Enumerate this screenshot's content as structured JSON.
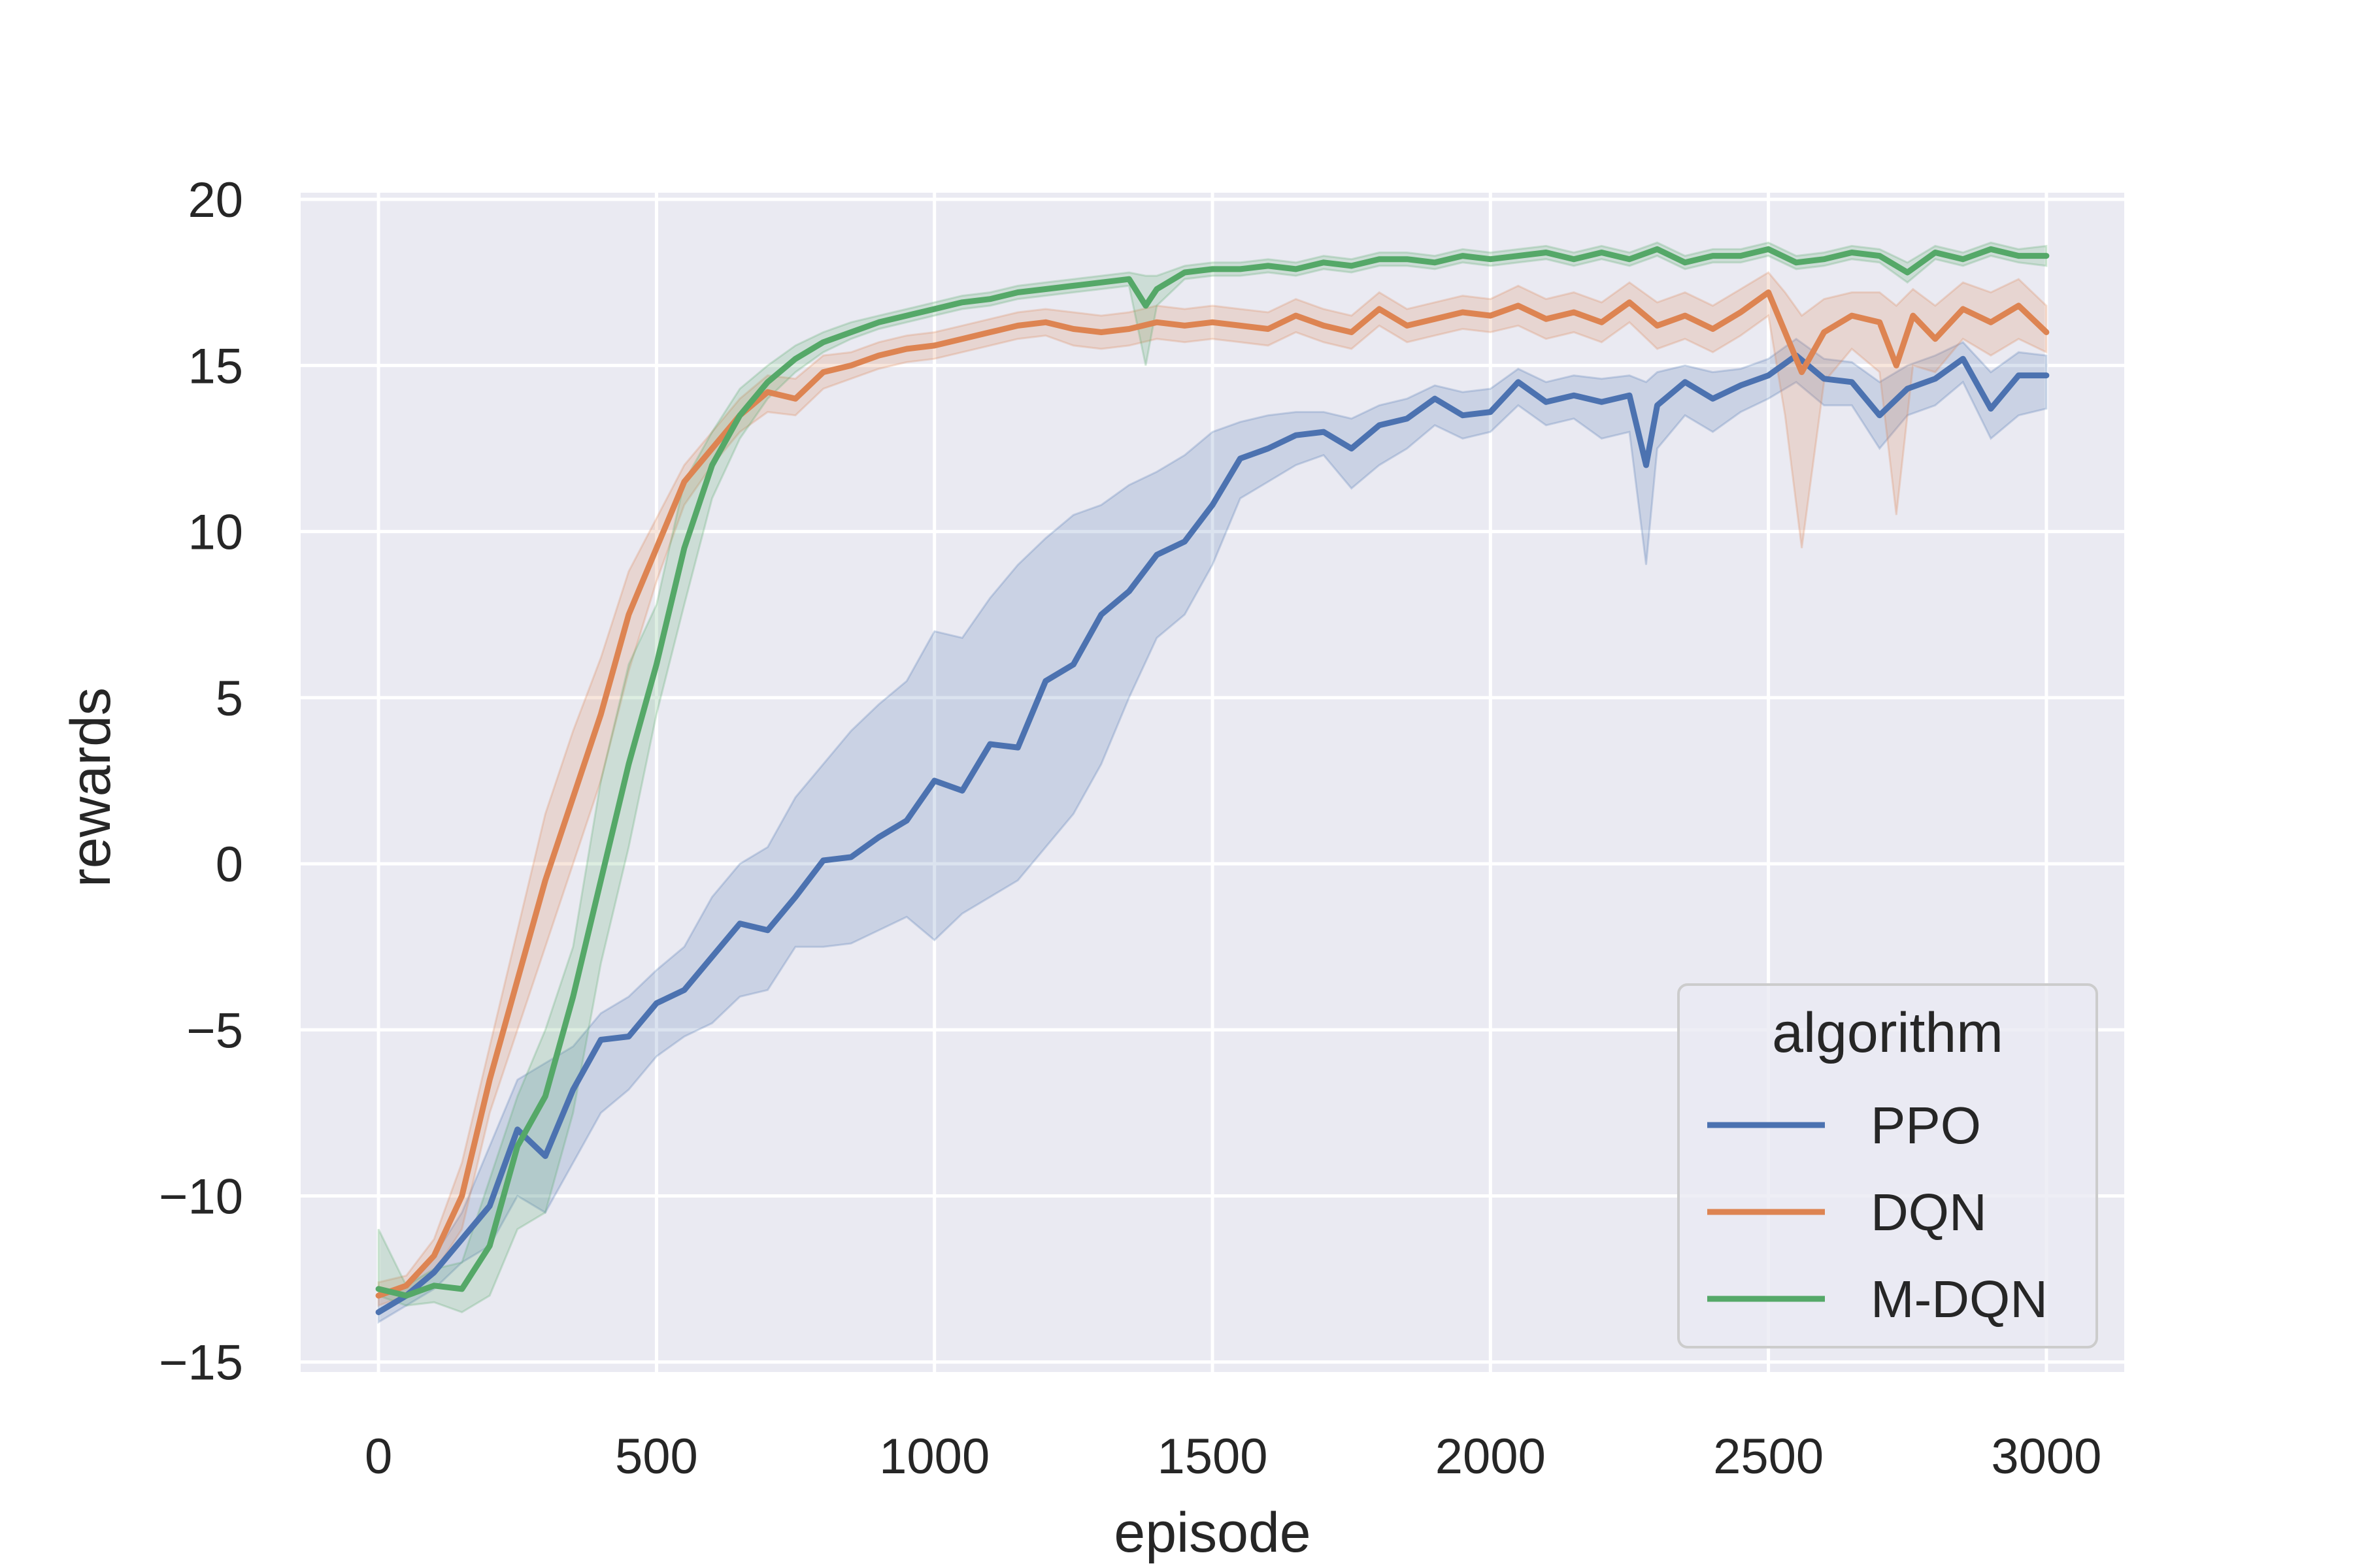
{
  "chart_data": {
    "type": "line",
    "title": "",
    "xlabel": "episode",
    "ylabel": "rewards",
    "xlim": [
      -140,
      3140
    ],
    "ylim": [
      -15.3,
      20.2
    ],
    "xticks": [
      0,
      500,
      1000,
      1500,
      2000,
      2500,
      3000
    ],
    "yticks": [
      -15,
      -10,
      -5,
      0,
      5,
      10,
      15,
      20
    ],
    "xtick_labels": [
      "0",
      "500",
      "1000",
      "1500",
      "2000",
      "2500",
      "3000"
    ],
    "ytick_labels": [
      "−15",
      "−10",
      "−5",
      "0",
      "5",
      "10",
      "15",
      "20"
    ],
    "grid": true,
    "legend_title": "algorithm",
    "legend_position": "lower-right",
    "background": "#eaeaf2",
    "series": [
      {
        "name": "PPO",
        "color": "#4c72b0",
        "x": [
          0,
          50,
          100,
          150,
          200,
          250,
          300,
          350,
          400,
          450,
          500,
          550,
          600,
          650,
          700,
          750,
          800,
          850,
          900,
          950,
          1000,
          1050,
          1100,
          1150,
          1200,
          1250,
          1300,
          1350,
          1400,
          1450,
          1500,
          1550,
          1600,
          1650,
          1700,
          1750,
          1800,
          1850,
          1900,
          1950,
          2000,
          2050,
          2100,
          2150,
          2200,
          2250,
          2280,
          2300,
          2350,
          2400,
          2450,
          2500,
          2550,
          2600,
          2650,
          2700,
          2750,
          2800,
          2850,
          2900,
          2950,
          3000
        ],
        "y": [
          -13.5,
          -13.0,
          -12.3,
          -11.3,
          -10.3,
          -8.0,
          -8.8,
          -6.8,
          -5.3,
          -5.2,
          -4.2,
          -3.8,
          -2.8,
          -1.8,
          -2.0,
          -1.0,
          0.1,
          0.2,
          0.8,
          1.3,
          2.5,
          2.2,
          3.6,
          3.5,
          5.5,
          6.0,
          7.5,
          8.2,
          9.3,
          9.7,
          10.8,
          12.2,
          12.5,
          12.9,
          13.0,
          12.5,
          13.2,
          13.4,
          14.0,
          13.5,
          13.6,
          14.5,
          13.9,
          14.1,
          13.9,
          14.1,
          12.0,
          13.8,
          14.5,
          14.0,
          14.4,
          14.7,
          15.3,
          14.6,
          14.5,
          13.5,
          14.3,
          14.6,
          15.2,
          13.7,
          14.7,
          14.7
        ],
        "lo": [
          -13.8,
          -13.3,
          -12.8,
          -12.0,
          -11.5,
          -10.0,
          -10.5,
          -9.0,
          -7.5,
          -6.8,
          -5.8,
          -5.2,
          -4.8,
          -4.0,
          -3.8,
          -2.5,
          -2.5,
          -2.4,
          -2.0,
          -1.6,
          -2.3,
          -1.5,
          -1.0,
          -0.5,
          0.5,
          1.5,
          3.0,
          5.0,
          6.8,
          7.5,
          9.0,
          11.0,
          11.5,
          12.0,
          12.3,
          11.3,
          12.0,
          12.5,
          13.2,
          12.8,
          13.0,
          13.8,
          13.2,
          13.4,
          12.8,
          13.0,
          9.0,
          12.5,
          13.5,
          13.0,
          13.6,
          14.0,
          14.5,
          13.8,
          13.8,
          12.5,
          13.5,
          13.8,
          14.5,
          12.8,
          13.5,
          13.7
        ],
        "hi": [
          -13.0,
          -12.7,
          -11.8,
          -10.5,
          -8.5,
          -6.5,
          -6.0,
          -5.5,
          -4.5,
          -4.0,
          -3.2,
          -2.5,
          -1.0,
          0.0,
          0.5,
          2.0,
          3.0,
          4.0,
          4.8,
          5.5,
          7.0,
          6.8,
          8.0,
          9.0,
          9.8,
          10.5,
          10.8,
          11.4,
          11.8,
          12.3,
          13.0,
          13.3,
          13.5,
          13.6,
          13.6,
          13.4,
          13.8,
          14.0,
          14.4,
          14.2,
          14.3,
          14.9,
          14.5,
          14.7,
          14.6,
          14.7,
          14.5,
          14.8,
          15.0,
          14.8,
          14.9,
          15.2,
          15.8,
          15.2,
          15.1,
          14.5,
          15.0,
          15.3,
          15.7,
          14.8,
          15.4,
          15.3
        ]
      },
      {
        "name": "DQN",
        "color": "#dd8452",
        "x": [
          0,
          50,
          100,
          150,
          200,
          250,
          300,
          350,
          400,
          450,
          500,
          550,
          600,
          650,
          700,
          750,
          800,
          850,
          900,
          950,
          1000,
          1050,
          1100,
          1150,
          1200,
          1250,
          1300,
          1350,
          1400,
          1450,
          1500,
          1550,
          1600,
          1650,
          1700,
          1750,
          1800,
          1850,
          1900,
          1950,
          2000,
          2050,
          2100,
          2150,
          2200,
          2250,
          2300,
          2350,
          2400,
          2450,
          2500,
          2530,
          2560,
          2600,
          2650,
          2700,
          2730,
          2760,
          2800,
          2850,
          2900,
          2950,
          3000
        ],
        "y": [
          -13.0,
          -12.7,
          -11.8,
          -10.0,
          -6.5,
          -3.5,
          -0.5,
          2.0,
          4.5,
          7.5,
          9.5,
          11.5,
          12.5,
          13.5,
          14.2,
          14.0,
          14.8,
          15.0,
          15.3,
          15.5,
          15.6,
          15.8,
          16.0,
          16.2,
          16.3,
          16.1,
          16.0,
          16.1,
          16.3,
          16.2,
          16.3,
          16.2,
          16.1,
          16.5,
          16.2,
          16.0,
          16.7,
          16.2,
          16.4,
          16.6,
          16.5,
          16.8,
          16.4,
          16.6,
          16.3,
          16.9,
          16.2,
          16.5,
          16.1,
          16.6,
          17.2,
          16.0,
          14.8,
          16.0,
          16.5,
          16.3,
          15.0,
          16.5,
          15.8,
          16.7,
          16.3,
          16.8,
          16.0
        ],
        "lo": [
          -13.3,
          -13.0,
          -12.3,
          -11.0,
          -7.5,
          -5.0,
          -2.5,
          0.0,
          2.5,
          5.8,
          8.5,
          10.8,
          12.0,
          13.0,
          13.6,
          13.5,
          14.3,
          14.6,
          14.9,
          15.1,
          15.2,
          15.4,
          15.6,
          15.8,
          15.9,
          15.6,
          15.5,
          15.6,
          15.8,
          15.7,
          15.8,
          15.7,
          15.6,
          16.0,
          15.7,
          15.5,
          16.2,
          15.7,
          15.9,
          16.1,
          16.0,
          16.2,
          15.8,
          16.0,
          15.7,
          16.3,
          15.5,
          15.8,
          15.4,
          15.9,
          16.5,
          13.5,
          9.5,
          14.5,
          15.5,
          14.8,
          10.5,
          15.0,
          14.8,
          15.8,
          15.3,
          15.8,
          15.4
        ],
        "hi": [
          -12.6,
          -12.4,
          -11.3,
          -9.0,
          -5.5,
          -2.0,
          1.5,
          4.0,
          6.2,
          8.8,
          10.4,
          12.0,
          13.0,
          14.0,
          14.7,
          14.6,
          15.3,
          15.4,
          15.7,
          15.9,
          16.0,
          16.2,
          16.4,
          16.6,
          16.7,
          16.6,
          16.5,
          16.6,
          16.8,
          16.7,
          16.8,
          16.7,
          16.6,
          17.0,
          16.7,
          16.5,
          17.2,
          16.7,
          16.9,
          17.1,
          17.0,
          17.4,
          17.0,
          17.2,
          16.9,
          17.5,
          16.9,
          17.2,
          16.8,
          17.3,
          17.8,
          17.2,
          16.5,
          17.0,
          17.2,
          17.2,
          16.8,
          17.3,
          16.8,
          17.5,
          17.2,
          17.6,
          16.8
        ]
      },
      {
        "name": "M-DQN",
        "color": "#55a868",
        "x": [
          0,
          50,
          100,
          150,
          200,
          250,
          300,
          350,
          400,
          450,
          500,
          550,
          600,
          650,
          700,
          750,
          800,
          850,
          900,
          950,
          1000,
          1050,
          1100,
          1150,
          1200,
          1250,
          1300,
          1350,
          1380,
          1400,
          1450,
          1500,
          1550,
          1600,
          1650,
          1700,
          1750,
          1800,
          1850,
          1900,
          1950,
          2000,
          2050,
          2100,
          2150,
          2200,
          2250,
          2300,
          2350,
          2400,
          2450,
          2500,
          2550,
          2600,
          2650,
          2700,
          2750,
          2800,
          2850,
          2900,
          2950,
          3000
        ],
        "y": [
          -12.8,
          -13.0,
          -12.7,
          -12.8,
          -11.5,
          -8.5,
          -7.0,
          -4.0,
          -0.5,
          3.0,
          6.0,
          9.5,
          12.0,
          13.5,
          14.5,
          15.2,
          15.7,
          16.0,
          16.3,
          16.5,
          16.7,
          16.9,
          17.0,
          17.2,
          17.3,
          17.4,
          17.5,
          17.6,
          16.8,
          17.3,
          17.8,
          17.9,
          17.9,
          18.0,
          17.9,
          18.1,
          18.0,
          18.2,
          18.2,
          18.1,
          18.3,
          18.2,
          18.3,
          18.4,
          18.2,
          18.4,
          18.2,
          18.5,
          18.1,
          18.3,
          18.3,
          18.5,
          18.1,
          18.2,
          18.4,
          18.3,
          17.8,
          18.4,
          18.2,
          18.5,
          18.3,
          18.3
        ],
        "lo": [
          -13.0,
          -13.3,
          -13.2,
          -13.5,
          -13.0,
          -11.0,
          -10.5,
          -7.5,
          -3.0,
          0.5,
          4.5,
          7.8,
          11.0,
          12.8,
          14.0,
          14.8,
          15.4,
          15.8,
          16.1,
          16.3,
          16.5,
          16.7,
          16.8,
          17.0,
          17.1,
          17.2,
          17.3,
          17.4,
          15.0,
          16.8,
          17.6,
          17.7,
          17.7,
          17.8,
          17.7,
          17.9,
          17.8,
          18.0,
          18.0,
          17.9,
          18.1,
          18.0,
          18.1,
          18.2,
          18.0,
          18.2,
          18.0,
          18.3,
          17.9,
          18.1,
          18.1,
          18.3,
          17.9,
          18.0,
          18.2,
          18.1,
          17.5,
          18.2,
          18.0,
          18.3,
          18.1,
          18.0
        ],
        "hi": [
          -11.0,
          -12.7,
          -12.2,
          -12.0,
          -9.5,
          -7.0,
          -5.0,
          -2.5,
          2.5,
          6.0,
          7.8,
          11.5,
          13.0,
          14.3,
          15.0,
          15.6,
          16.0,
          16.3,
          16.5,
          16.7,
          16.9,
          17.1,
          17.2,
          17.4,
          17.5,
          17.6,
          17.7,
          17.8,
          17.7,
          17.7,
          18.0,
          18.1,
          18.1,
          18.2,
          18.1,
          18.3,
          18.2,
          18.4,
          18.4,
          18.3,
          18.5,
          18.4,
          18.5,
          18.6,
          18.4,
          18.6,
          18.4,
          18.7,
          18.3,
          18.5,
          18.5,
          18.7,
          18.3,
          18.4,
          18.6,
          18.5,
          18.1,
          18.6,
          18.4,
          18.7,
          18.5,
          18.6
        ]
      }
    ]
  }
}
